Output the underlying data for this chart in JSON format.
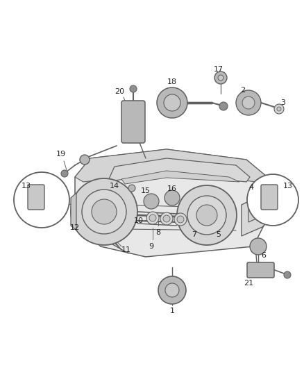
{
  "background_color": "#ffffff",
  "line_color": "#606060",
  "label_color": "#222222",
  "fig_width": 4.38,
  "fig_height": 5.33,
  "dpi": 100,
  "manifold_color": "#e8e8e8",
  "manifold_dark": "#c8c8c8",
  "manifold_mid": "#d8d8d8",
  "part_gray": "#b8b8b8",
  "part_light": "#d4d4d4",
  "part_dark": "#909090"
}
